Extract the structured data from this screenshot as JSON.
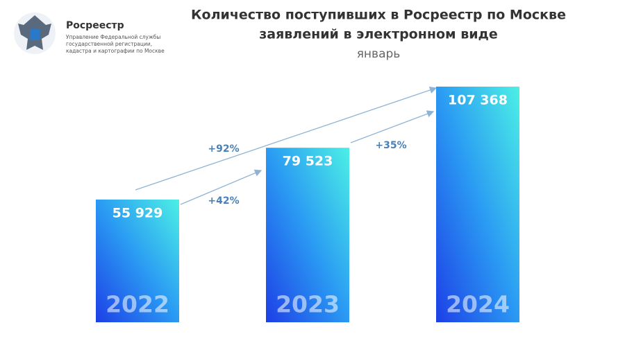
{
  "logo": {
    "name": "Росреестр",
    "lines": [
      "Управление Федеральной службы",
      "государственной регистрации,",
      "кадастра и картографии по Москве"
    ]
  },
  "chart_data": {
    "type": "bar",
    "title": [
      "Количество поступивших в Росреестр по Москве",
      "заявлений в электронном виде"
    ],
    "subtitle": "январь",
    "categories": [
      "2022",
      "2023",
      "2024"
    ],
    "values": [
      55929,
      79523,
      107368
    ],
    "value_labels": [
      "55 929",
      "79 523",
      "107 368"
    ],
    "colors": [
      "#1d3fe6",
      "#2a9af3",
      "#4cf0e6"
    ],
    "annotations": [
      "+92%",
      "+42%",
      "+35%"
    ]
  }
}
